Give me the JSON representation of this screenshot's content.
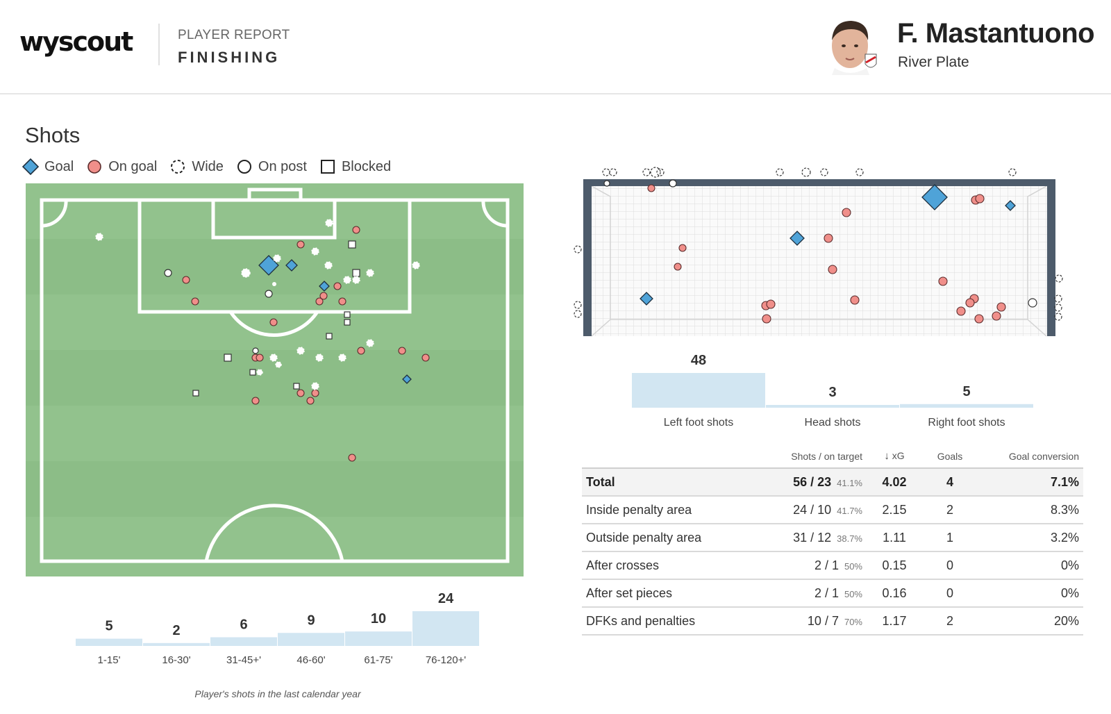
{
  "header": {
    "logo": "wyscout",
    "report_label": "PLAYER REPORT",
    "report_title": "FINISHING",
    "player_name": "F. Mastantuono",
    "team": "River Plate"
  },
  "shots": {
    "title": "Shots",
    "legend": [
      {
        "icon": "goal-diamond-icon",
        "label": "Goal"
      },
      {
        "icon": "on-goal-circle-icon",
        "label": "On goal"
      },
      {
        "icon": "wide-dashed-circle-icon",
        "label": "Wide"
      },
      {
        "icon": "on-post-circle-icon",
        "label": "On post"
      },
      {
        "icon": "blocked-square-icon",
        "label": "Blocked"
      }
    ]
  },
  "colors": {
    "pitch_green": "#92c28d",
    "pitch_stripe": "#8cbd87",
    "goal_blue": "#4fa3d8",
    "on_goal_red": "#f08f8a",
    "frame_dark": "#4d5b6b",
    "bar_light_blue": "#d2e6f2"
  },
  "chart_data": [
    {
      "type": "bar",
      "title": "",
      "categories": [
        "1-15'",
        "16-30'",
        "31-45+'",
        "46-60'",
        "61-75'",
        "76-120+'"
      ],
      "values": [
        5,
        2,
        6,
        9,
        10,
        24
      ],
      "xlabel": "",
      "ylabel": ""
    },
    {
      "type": "bar",
      "title": "",
      "categories": [
        "Left foot shots",
        "Head shots",
        "Right foot shots"
      ],
      "values": [
        48,
        3,
        5
      ],
      "xlabel": "",
      "ylabel": ""
    }
  ],
  "footer_note": "Player's shots in the last calendar year",
  "table": {
    "headers": {
      "label": "",
      "shots": "Shots / on target",
      "sort_arrow": "↓",
      "xg": "xG",
      "goals": "Goals",
      "conversion": "Goal conversion"
    },
    "rows": [
      {
        "label": "Total",
        "shots": "56 / 23",
        "pct": "41.1%",
        "xg": "4.02",
        "goals": "4",
        "conversion": "7.1%"
      },
      {
        "label": "Inside penalty area",
        "shots": "24 / 10",
        "pct": "41.7%",
        "xg": "2.15",
        "goals": "2",
        "conversion": "8.3%"
      },
      {
        "label": "Outside penalty area",
        "shots": "31 / 12",
        "pct": "38.7%",
        "xg": "1.11",
        "goals": "1",
        "conversion": "3.2%"
      },
      {
        "label": "After crosses",
        "shots": "2 / 1",
        "pct": "50%",
        "xg": "0.15",
        "goals": "0",
        "conversion": "0%"
      },
      {
        "label": "After set pieces",
        "shots": "2 / 1",
        "pct": "50%",
        "xg": "0.16",
        "goals": "0",
        "conversion": "0%"
      },
      {
        "label": "DFKs and penalties",
        "shots": "10 / 7",
        "pct": "70%",
        "xg": "1.17",
        "goals": "2",
        "conversion": "20%"
      }
    ]
  }
}
